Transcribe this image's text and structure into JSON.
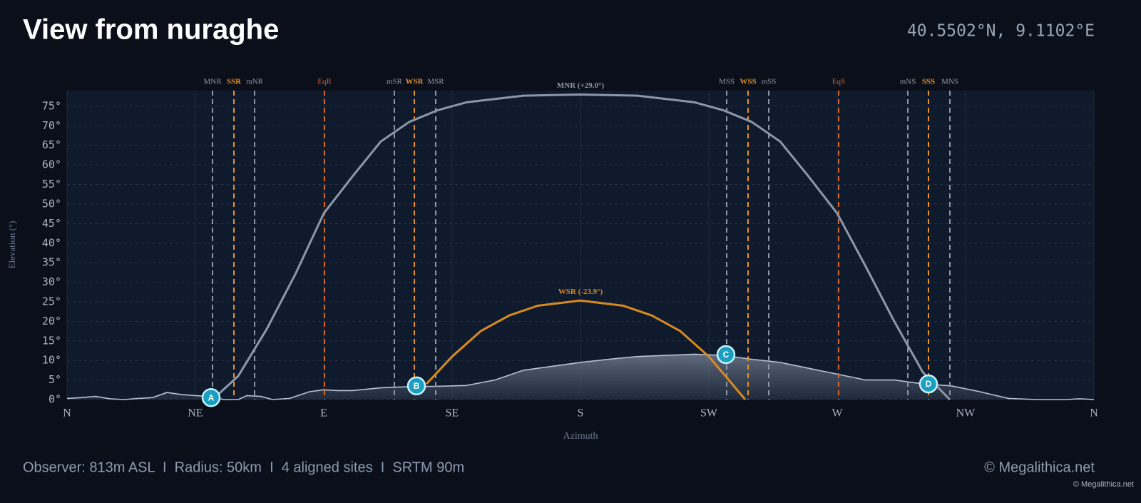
{
  "header": {
    "title": "View from nuraghe",
    "coords": "40.5502°N, 9.1102°E"
  },
  "chart_data": {
    "type": "line",
    "x_label": "Azimuth",
    "y_label": "Elevation (°)",
    "xlim": [
      0,
      360
    ],
    "ylim": [
      0,
      79
    ],
    "xticks": [
      {
        "value": 0,
        "label": "N"
      },
      {
        "value": 45,
        "label": "NE"
      },
      {
        "value": 90,
        "label": "E"
      },
      {
        "value": 135,
        "label": "SE"
      },
      {
        "value": 180,
        "label": "S"
      },
      {
        "value": 225,
        "label": "SW"
      },
      {
        "value": 270,
        "label": "W"
      },
      {
        "value": 315,
        "label": "NW"
      },
      {
        "value": 360,
        "label": "N"
      }
    ],
    "yticks": [
      {
        "value": 0,
        "label": "0°"
      },
      {
        "value": 5,
        "label": "5°"
      },
      {
        "value": 10,
        "label": "10°"
      },
      {
        "value": 15,
        "label": "15°"
      },
      {
        "value": 20,
        "label": "20°"
      },
      {
        "value": 25,
        "label": "25°"
      },
      {
        "value": 30,
        "label": "30°"
      },
      {
        "value": 35,
        "label": "35°"
      },
      {
        "value": 40,
        "label": "40°"
      },
      {
        "value": 45,
        "label": "45°"
      },
      {
        "value": 50,
        "label": "50°"
      },
      {
        "value": 55,
        "label": "55°"
      },
      {
        "value": 60,
        "label": "60°"
      },
      {
        "value": 65,
        "label": "65°"
      },
      {
        "value": 70,
        "label": "70°"
      },
      {
        "value": 75,
        "label": "75°"
      }
    ],
    "grid": true,
    "horizon": {
      "color": "#b8c2d2",
      "x": [
        0,
        5,
        10,
        15,
        20,
        25,
        30,
        35,
        40,
        45,
        50,
        55,
        60,
        63,
        68,
        72,
        78,
        85,
        90,
        95,
        100,
        110,
        120,
        130,
        140,
        150,
        160,
        170,
        180,
        190,
        200,
        210,
        220,
        230,
        240,
        250,
        260,
        270,
        280,
        290,
        300,
        310,
        320,
        330,
        340,
        350,
        355,
        360
      ],
      "y": [
        0.3,
        0.5,
        0.8,
        0.2,
        0,
        0.3,
        0.5,
        1.8,
        1.3,
        1,
        0.8,
        0,
        0,
        1,
        0.8,
        0,
        0.3,
        2,
        2.5,
        2.3,
        2.3,
        3,
        3.3,
        3.4,
        3.6,
        5,
        7.5,
        8.5,
        9.5,
        10.3,
        11,
        11.3,
        11.6,
        11.3,
        10.3,
        9.5,
        8,
        6.5,
        5,
        5,
        4,
        3.5,
        2,
        0.3,
        0,
        0,
        0.2,
        0
      ]
    },
    "curves": [
      {
        "name": "MNR (+29.0°)",
        "color": "#8e97aa",
        "x": [
          51,
          60,
          70,
          80,
          90,
          100,
          110,
          120,
          130,
          140,
          160,
          180,
          200,
          220,
          230,
          240,
          250,
          260,
          270,
          280,
          290,
          300,
          309.5
        ],
        "y": [
          0,
          6,
          18,
          32,
          47.6,
          57,
          66,
          71,
          74,
          76,
          77.7,
          78,
          77.7,
          76,
          74,
          71,
          66,
          57,
          47.6,
          34,
          20,
          7,
          0
        ]
      },
      {
        "name": "WSR (-23.9°)",
        "color": "#d98a1f",
        "x": [
          126,
          135,
          145,
          155,
          165,
          180,
          195,
          205,
          215,
          225,
          232,
          237.75
        ],
        "y": [
          4,
          11,
          17.5,
          21.5,
          24,
          25.3,
          24,
          21.5,
          17.5,
          11,
          5,
          0
        ]
      }
    ],
    "alignments": [
      {
        "label": "MNR",
        "x": 51,
        "color": "#8e97aa"
      },
      {
        "label": "SSR",
        "x": 58.5,
        "color": "#e8922a"
      },
      {
        "label": "mNR",
        "x": 65.75,
        "color": "#8e97aa"
      },
      {
        "label": "EqR",
        "x": 90.25,
        "color": "#d8652a"
      },
      {
        "label": "mSR",
        "x": 114.75,
        "color": "#8e97aa"
      },
      {
        "label": "WSR",
        "x": 121.75,
        "color": "#e8922a"
      },
      {
        "label": "MSR",
        "x": 129.25,
        "color": "#8e97aa"
      },
      {
        "label": "MSS",
        "x": 231.25,
        "color": "#8e97aa"
      },
      {
        "label": "WSS",
        "x": 238.75,
        "color": "#e8922a"
      },
      {
        "label": "mSS",
        "x": 246,
        "color": "#8e97aa"
      },
      {
        "label": "EqS",
        "x": 270.5,
        "color": "#d8652a"
      },
      {
        "label": "mNS",
        "x": 294.75,
        "color": "#8e97aa"
      },
      {
        "label": "SSS",
        "x": 302,
        "color": "#e8922a"
      },
      {
        "label": "MNS",
        "x": 309.5,
        "color": "#8e97aa"
      }
    ],
    "sites": [
      {
        "label": "A",
        "x": 50.5,
        "y": 0.5
      },
      {
        "label": "B",
        "x": 122.5,
        "y": 3.5
      },
      {
        "label": "C",
        "x": 231,
        "y": 11.5
      },
      {
        "label": "D",
        "x": 302,
        "y": 4
      }
    ]
  },
  "footer": {
    "info": "Observer: 813m ASL  I  Radius: 50km  I  4 aligned sites  I  SRTM 90m",
    "brand": "© Megalithica.net",
    "credit": "© Megalithica.net"
  }
}
